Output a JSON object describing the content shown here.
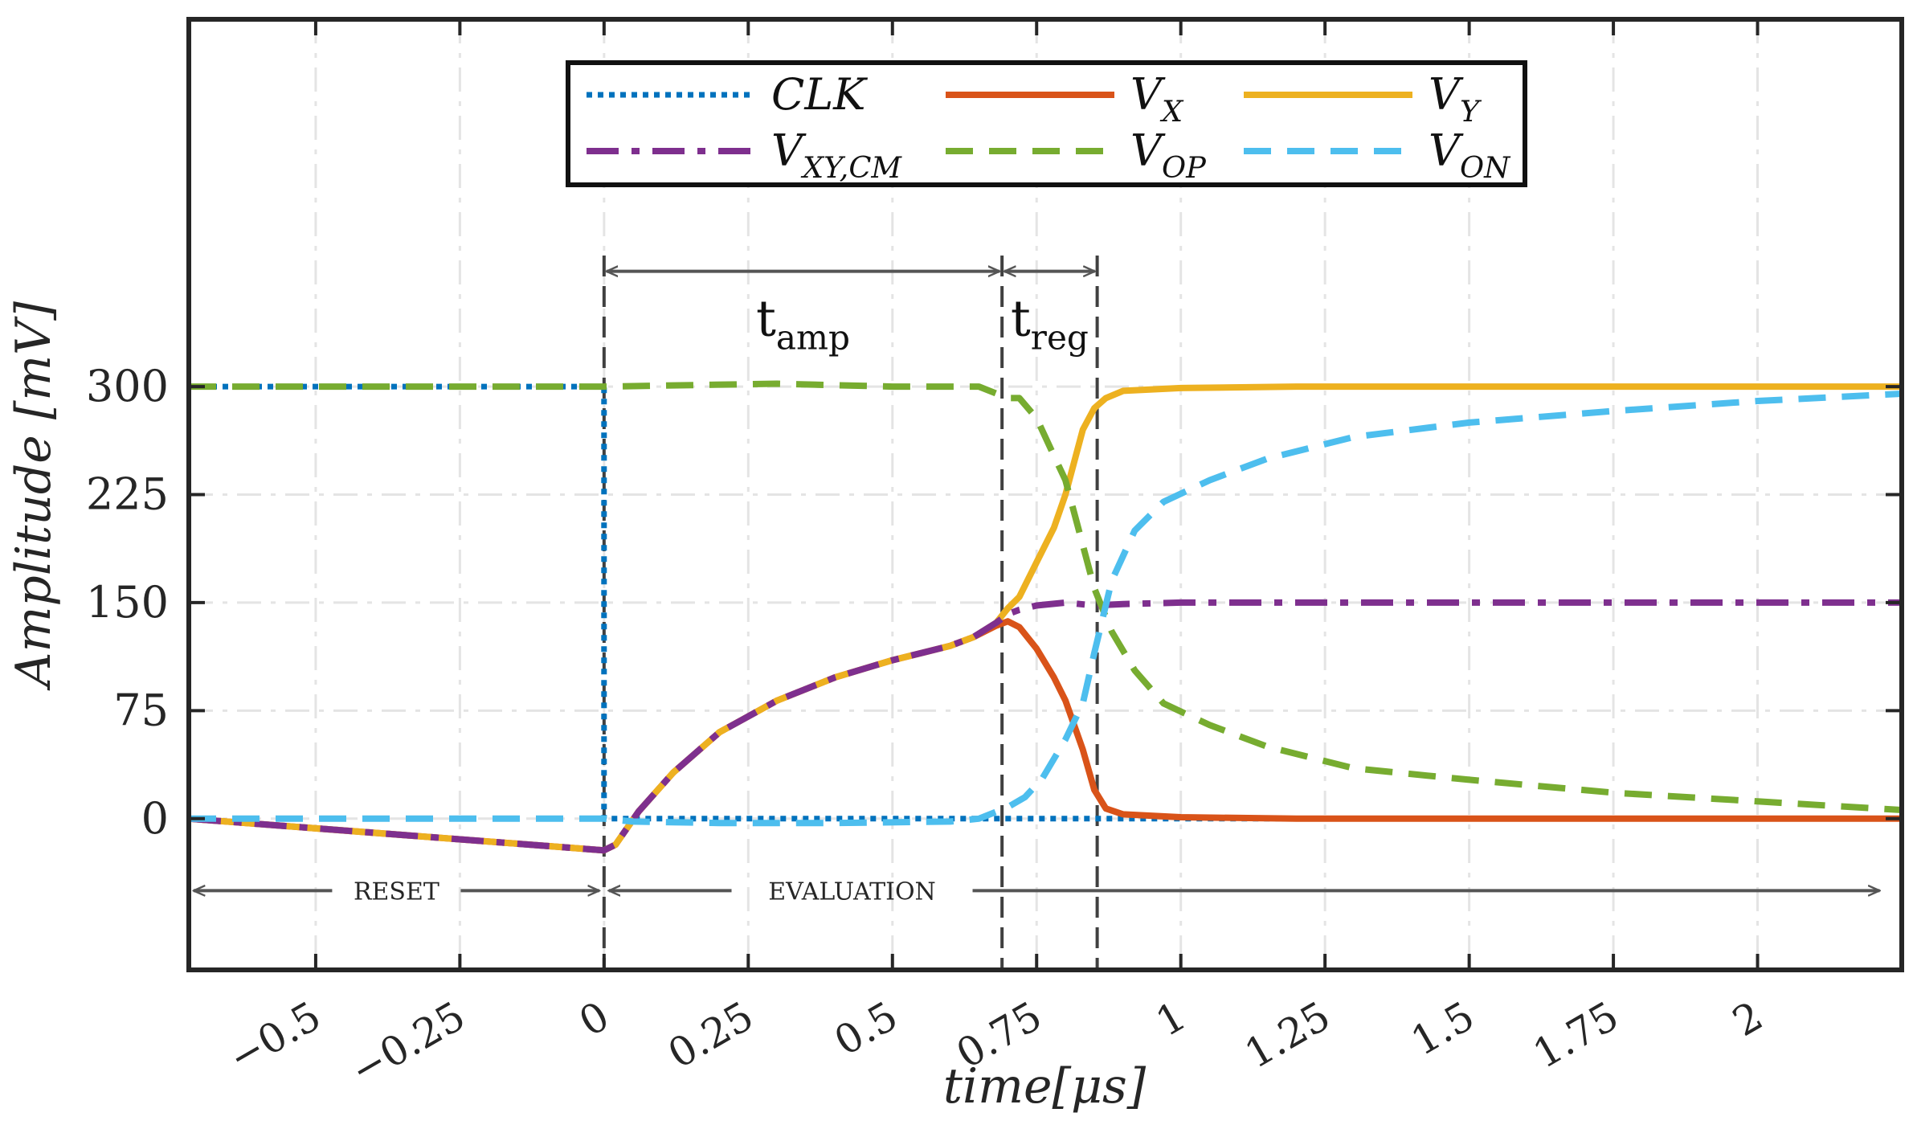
{
  "chart_data": {
    "type": "line",
    "title": "",
    "xlabel": "time[μs]",
    "ylabel": "Amplitude [mV]",
    "xlim": [
      -0.72,
      2.25
    ],
    "ylim": [
      -105,
      555
    ],
    "grid": true,
    "legend_position": "top-center",
    "xticks": [
      -0.5,
      -0.25,
      0,
      0.25,
      0.5,
      0.75,
      1,
      1.25,
      1.5,
      1.75,
      2
    ],
    "xtick_labels": [
      "−0.5",
      "−0.25",
      "0",
      "0.25",
      "0.5",
      "0.75",
      "1",
      "1.25",
      "1.5",
      "1.75",
      "2"
    ],
    "yticks": [
      0,
      75,
      150,
      225,
      300
    ],
    "ytick_labels": [
      "0",
      "75",
      "150",
      "225",
      "300"
    ],
    "series": [
      {
        "name": "CLK",
        "label_main": "CLK",
        "label_sub": "",
        "color": "#0072BD",
        "dash": "dot",
        "x": [
          -0.72,
          0.0,
          0.0,
          2.25
        ],
        "y": [
          300,
          300,
          0,
          0
        ]
      },
      {
        "name": "V_X",
        "label_main": "V",
        "label_sub": "X",
        "color": "#D95319",
        "dash": "solid",
        "x": [
          -0.72,
          0.0,
          0.02,
          0.06,
          0.12,
          0.2,
          0.3,
          0.4,
          0.5,
          0.6,
          0.64,
          0.68,
          0.7,
          0.72,
          0.75,
          0.78,
          0.8,
          0.83,
          0.85,
          0.87,
          0.9,
          1.0,
          1.2,
          1.5,
          2.0,
          2.25
        ],
        "y": [
          0,
          -22,
          -18,
          5,
          32,
          60,
          82,
          98,
          110,
          120,
          126,
          134,
          137,
          133,
          118,
          98,
          82,
          48,
          20,
          7,
          3,
          1,
          0,
          0,
          0,
          0
        ]
      },
      {
        "name": "V_Y",
        "label_main": "V",
        "label_sub": "Y",
        "color": "#EDB120",
        "dash": "solid",
        "x": [
          -0.72,
          0.0,
          0.02,
          0.06,
          0.12,
          0.2,
          0.3,
          0.4,
          0.5,
          0.6,
          0.64,
          0.68,
          0.7,
          0.72,
          0.75,
          0.78,
          0.8,
          0.83,
          0.85,
          0.87,
          0.9,
          1.0,
          1.2,
          1.5,
          2.0,
          2.25
        ],
        "y": [
          0,
          -22,
          -18,
          5,
          32,
          60,
          82,
          98,
          110,
          120,
          126,
          136,
          146,
          154,
          178,
          202,
          225,
          270,
          285,
          292,
          297,
          299,
          300,
          300,
          300,
          300
        ]
      },
      {
        "name": "V_XY,CM",
        "label_main": "V",
        "label_sub": "XY,CM",
        "color": "#7E2F8E",
        "dash": "dashdot",
        "x": [
          -0.72,
          0.0,
          0.02,
          0.06,
          0.12,
          0.2,
          0.3,
          0.4,
          0.5,
          0.6,
          0.64,
          0.68,
          0.7,
          0.72,
          0.75,
          0.8,
          0.85,
          0.9,
          1.0,
          1.5,
          2.25
        ],
        "y": [
          0,
          -22,
          -18,
          5,
          32,
          60,
          82,
          98,
          110,
          120,
          126,
          136,
          142,
          145,
          148,
          150,
          148,
          149,
          150,
          150,
          150
        ]
      },
      {
        "name": "V_OP",
        "label_main": "V",
        "label_sub": "OP",
        "color": "#77AC30",
        "dash": "dash",
        "x": [
          -0.72,
          0.0,
          0.3,
          0.5,
          0.65,
          0.7,
          0.72,
          0.75,
          0.78,
          0.8,
          0.82,
          0.85,
          0.88,
          0.92,
          0.97,
          1.05,
          1.15,
          1.3,
          1.5,
          1.75,
          2.0,
          2.25
        ],
        "y": [
          300,
          300,
          302,
          300,
          300,
          292,
          292,
          278,
          252,
          235,
          205,
          160,
          130,
          103,
          80,
          65,
          50,
          35,
          27,
          18,
          12,
          6
        ]
      },
      {
        "name": "V_ON",
        "label_main": "V",
        "label_sub": "ON",
        "color": "#4DBEEE",
        "dash": "dash",
        "x": [
          -0.72,
          0.0,
          0.05,
          0.2,
          0.4,
          0.6,
          0.65,
          0.7,
          0.73,
          0.76,
          0.8,
          0.83,
          0.85,
          0.88,
          0.92,
          0.97,
          1.05,
          1.15,
          1.3,
          1.5,
          1.75,
          2.0,
          2.25
        ],
        "y": [
          0,
          0,
          -2,
          -3,
          -3,
          -2,
          0,
          8,
          15,
          28,
          55,
          80,
          115,
          165,
          200,
          220,
          235,
          250,
          265,
          275,
          283,
          290,
          295
        ]
      }
    ],
    "vlines": [
      {
        "x": 0.0,
        "color": "#404040"
      },
      {
        "x": 0.69,
        "color": "#404040"
      },
      {
        "x": 0.855,
        "color": "#404040"
      }
    ],
    "intervals": [
      {
        "name": "t_amp",
        "label_main": "t",
        "label_sub": "amp",
        "x0": 0.0,
        "x1": 0.69,
        "y": 380,
        "label_y": 330
      },
      {
        "name": "t_reg",
        "label_main": "t",
        "label_sub": "reg",
        "x0": 0.69,
        "x1": 0.855,
        "y": 380,
        "label_y": 330
      }
    ],
    "phases": [
      {
        "name": "reset",
        "label": "RESET",
        "x0": -0.72,
        "x1": 0.0,
        "label_x": -0.36,
        "y": -50
      },
      {
        "name": "evaluation",
        "label": "EVALUATION",
        "x0": 0.0,
        "x1": 2.22,
        "label_x": 0.43,
        "y": -50
      }
    ]
  }
}
